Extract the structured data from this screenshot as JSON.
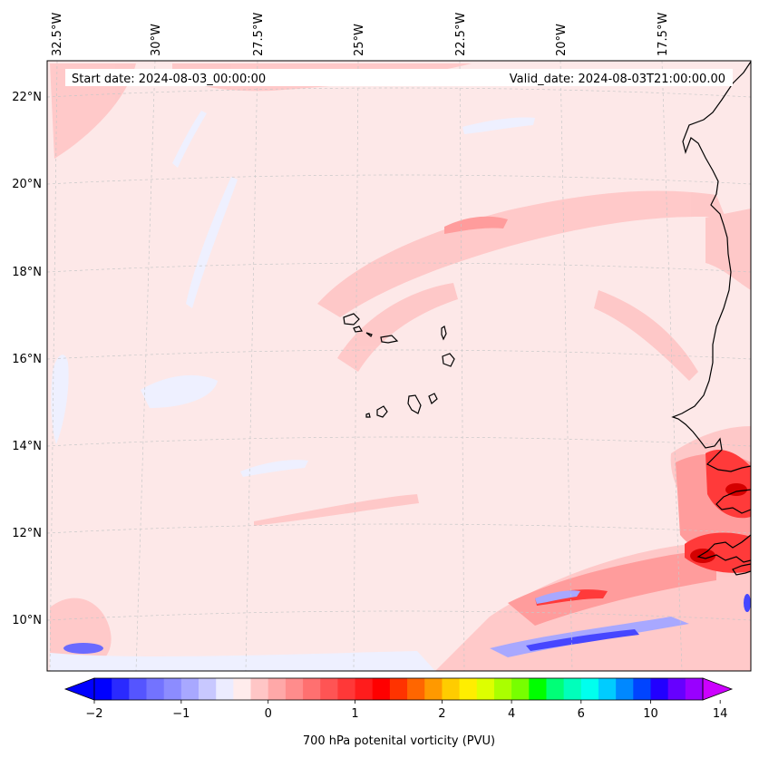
{
  "map": {
    "header": {
      "start_label": "Start date: 2024-08-03_00:00:00",
      "valid_label": "Valid_date: 2024-08-03T21:00:00.00"
    },
    "longitude_labels": [
      "32.5°W",
      "30°W",
      "27.5°W",
      "25°W",
      "22.5°W",
      "20°W",
      "17.5°W"
    ],
    "latitude_labels": [
      "22°N",
      "20°N",
      "18°N",
      "16°N",
      "14°N",
      "12°N",
      "10°N"
    ],
    "extent": {
      "lon_min": -32.7,
      "lon_max": -15.5,
      "lat_min": 8.9,
      "lat_max": 22.8
    },
    "field_colors": {
      "background": "#fde8e8",
      "weak_positive": "#ffc7c7",
      "moderate_positive": "#ff9c9c",
      "strong_positive": "#ff3a3a",
      "extreme_positive": "#d40000",
      "weak_negative": "#eef0ff",
      "moderate_negative": "#a8a8ff",
      "strong_negative": "#4646ff"
    },
    "colorbar": {
      "label": "700 hPa potenital vorticity (PVU)",
      "tick_labels": [
        "−2",
        "−1",
        "0",
        "1",
        "2",
        "4",
        "6",
        "10",
        "14"
      ],
      "tick_bin_index": [
        0,
        5,
        10,
        15,
        20,
        24,
        28,
        32,
        36
      ],
      "colors": [
        "#0000ff",
        "#2a2aff",
        "#5555ff",
        "#7373ff",
        "#8c8cff",
        "#a8a8ff",
        "#c8c8ff",
        "#ececff",
        "#ffecec",
        "#ffc6c6",
        "#ffa8a8",
        "#ff8c8c",
        "#ff7070",
        "#ff5454",
        "#ff3838",
        "#ff1c1c",
        "#ff0000",
        "#ff3300",
        "#ff6600",
        "#ff9900",
        "#ffcc00",
        "#ffee00",
        "#ddff00",
        "#aaff00",
        "#77ff00",
        "#00ff00",
        "#00ff77",
        "#00ffbb",
        "#00ffee",
        "#00ccff",
        "#0088ff",
        "#0044ff",
        "#2200ff",
        "#6600ff",
        "#9900ff"
      ],
      "extend_low_color": "#0000ff",
      "extend_high_color": "#cc00ff"
    }
  }
}
